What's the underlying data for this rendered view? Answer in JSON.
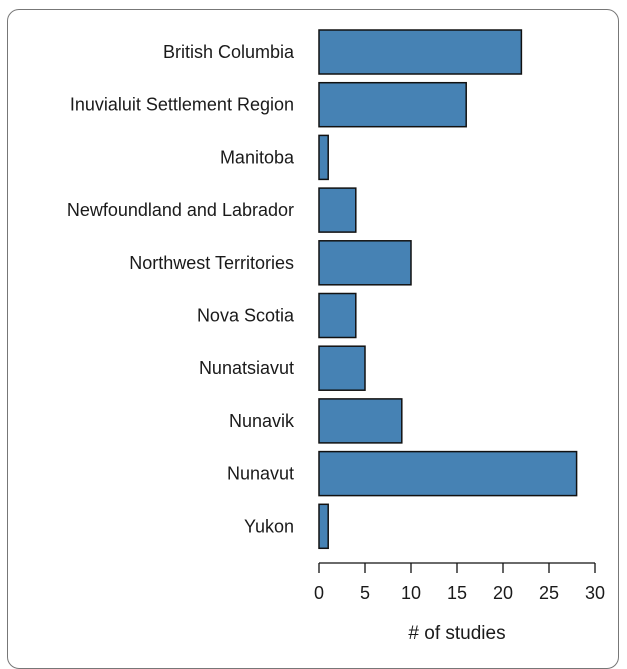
{
  "chart_data": {
    "type": "bar",
    "orientation": "horizontal",
    "categories": [
      "British Columbia",
      "Inuvialuit Settlement Region",
      "Manitoba",
      "Newfoundland and Labrador",
      "Northwest Territories",
      "Nova Scotia",
      "Nunatsiavut",
      "Nunavik",
      "Nunavut",
      "Yukon"
    ],
    "values": [
      22,
      16,
      1,
      4,
      10,
      4,
      5,
      9,
      28,
      1
    ],
    "xlabel": "# of studies",
    "ylabel": "",
    "xlim": [
      0,
      30
    ],
    "xticks": [
      0,
      5,
      10,
      15,
      20,
      25,
      30
    ],
    "grid": false,
    "bar_color": "#4682b4",
    "bar_edge_color": "#111111"
  }
}
